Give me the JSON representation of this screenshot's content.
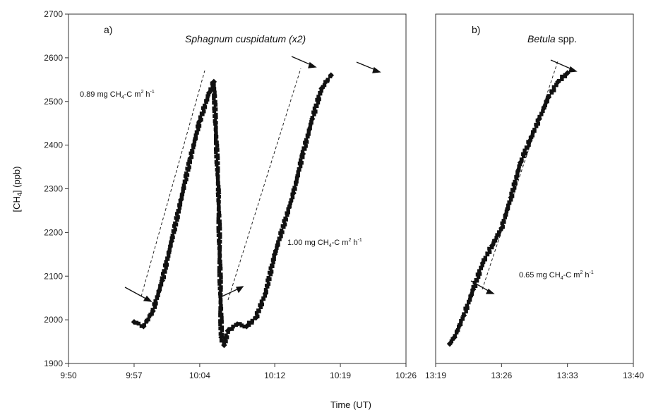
{
  "chart_data": [
    {
      "type": "scatter",
      "panel_label": "a)",
      "title_italic": "Sphagnum cuspidatum (x2)",
      "ylabel_main": "[CH",
      "ylabel_sub": "4",
      "ylabel_tail": "] (ppb)",
      "ylim": [
        1900,
        2700
      ],
      "yticks": [
        "1900",
        "2000",
        "2100",
        "2200",
        "2300",
        "2400",
        "2500",
        "2600",
        "2700"
      ],
      "xticks": [
        "9:50",
        "9:57",
        "10:04",
        "10:12",
        "10:19",
        "10:26"
      ],
      "grid": false,
      "series": [
        {
          "style": "markers+line",
          "points": [
            [
              "9:57",
              1995
            ],
            [
              "9:58",
              1985
            ],
            [
              "9:59",
              2020
            ],
            [
              "10:00",
              2090
            ],
            [
              "10:01",
              2180
            ],
            [
              "10:02",
              2275
            ],
            [
              "10:03",
              2370
            ],
            [
              "10:04",
              2455
            ],
            [
              "10:05",
              2520
            ],
            [
              "10:05.5",
              2545
            ],
            [
              "10:06",
              2290
            ],
            [
              "10:06.3",
              1960
            ],
            [
              "10:06.6",
              1942
            ],
            [
              "10:07",
              1975
            ],
            [
              "10:08",
              1990
            ],
            [
              "10:09",
              1985
            ],
            [
              "10:10",
              2005
            ],
            [
              "10:11",
              2060
            ],
            [
              "10:12",
              2150
            ],
            [
              "10:14",
              2290
            ],
            [
              "10:15",
              2380
            ],
            [
              "10:16",
              2460
            ],
            [
              "10:17",
              2530
            ],
            [
              "10:18",
              2560
            ]
          ]
        }
      ],
      "annotations": [
        {
          "pre": "0.89 mg CH",
          "sub": "4",
          "mid": "-C m",
          "sup": "2",
          "tail": " h",
          "sup2": "-1"
        },
        {
          "pre": "1.00 mg CH",
          "sub": "4",
          "mid": "-C m",
          "sup": "2",
          "tail": " h",
          "sup2": "-1"
        }
      ]
    },
    {
      "type": "scatter",
      "panel_label": "b)",
      "title_italic": "Betula",
      "title_plain": " spp.",
      "ylim": [
        1900,
        2700
      ],
      "xticks": [
        "13:19",
        "13:26",
        "13:33",
        "13:40"
      ],
      "grid": false,
      "series": [
        {
          "style": "markers",
          "points": [
            [
              "13:20.5",
              1945
            ],
            [
              "13:21",
              1960
            ],
            [
              "13:22",
              2010
            ],
            [
              "13:23",
              2070
            ],
            [
              "13:24",
              2130
            ],
            [
              "13:25",
              2170
            ],
            [
              "13:26",
              2210
            ],
            [
              "13:27",
              2280
            ],
            [
              "13:28",
              2360
            ],
            [
              "13:29",
              2410
            ],
            [
              "13:30",
              2460
            ],
            [
              "13:31",
              2510
            ],
            [
              "13:32",
              2545
            ],
            [
              "13:33",
              2565
            ]
          ]
        }
      ],
      "annotations": [
        {
          "pre": "0.65 mg CH",
          "sub": "4",
          "mid": "-C m",
          "sup": "2",
          "tail": " h",
          "sup2": "-1"
        }
      ]
    }
  ],
  "xlabel": "Time (UT)"
}
